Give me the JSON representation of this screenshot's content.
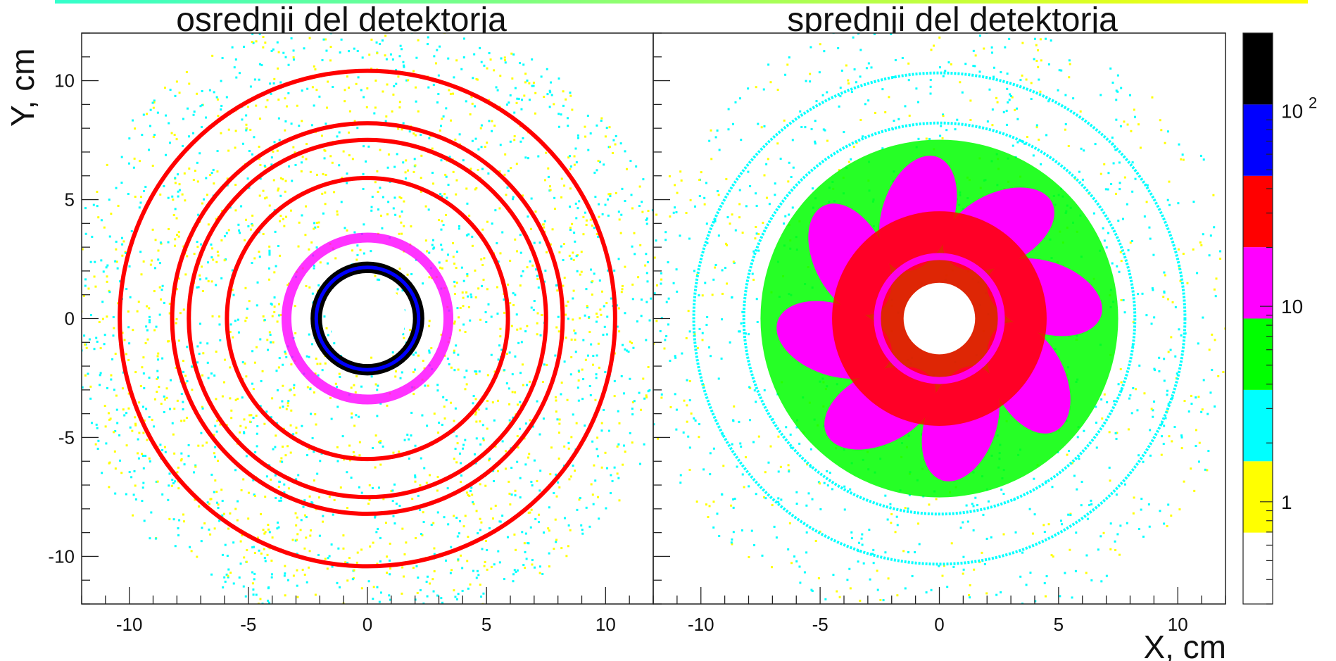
{
  "chart_data": {
    "type": "heatmap",
    "xlabel": "X, cm",
    "ylabel": "Y, cm",
    "xlim": [
      -12,
      12
    ],
    "ylim": [
      -12,
      12
    ],
    "x_ticks": [
      -10,
      -5,
      0,
      5,
      10
    ],
    "y_ticks": [
      -10,
      -5,
      0,
      5,
      10
    ],
    "color_scale": "log",
    "zlim": [
      0.3,
      250
    ],
    "colorbar_ticks": [
      "1",
      "10",
      "10 2"
    ],
    "colorbar_tick_values": [
      1,
      10,
      100
    ],
    "palette": [
      "#ffffff",
      "#ffff00",
      "#00ffff",
      "#00ff00",
      "#ff00ff",
      "#ff0000",
      "#0000ff",
      "#000000"
    ],
    "panels": [
      {
        "title": "osrednji del detektorja",
        "center_hole_radius": 1.6,
        "features": [
          {
            "kind": "ring",
            "radius": 2.0,
            "level": "black"
          },
          {
            "kind": "ring",
            "radius": 2.3,
            "level": "black"
          },
          {
            "kind": "ring",
            "radius": 5.9,
            "level": "red"
          },
          {
            "kind": "ring",
            "radius": 7.5,
            "level": "red"
          },
          {
            "kind": "ring",
            "radius": 8.2,
            "level": "red"
          },
          {
            "kind": "ring",
            "radius": 10.4,
            "level": "red"
          }
        ]
      },
      {
        "title": "sprednji del detektorja",
        "center_hole_radius": 1.5,
        "features": [
          {
            "kind": "disk",
            "radius": 7.5,
            "level": "green"
          },
          {
            "kind": "petals",
            "count": 8,
            "inner_radius": 2.0,
            "outer_radius": 7.0,
            "level": "magenta"
          },
          {
            "kind": "disk",
            "radius": 4.5,
            "level": "red"
          },
          {
            "kind": "ring",
            "radius": 8.2,
            "level": "cyan"
          },
          {
            "kind": "ring",
            "radius": 10.3,
            "level": "cyan"
          }
        ]
      }
    ]
  },
  "colors": {
    "gradient_bar": [
      "#33ffcc",
      "#ffff00"
    ]
  }
}
